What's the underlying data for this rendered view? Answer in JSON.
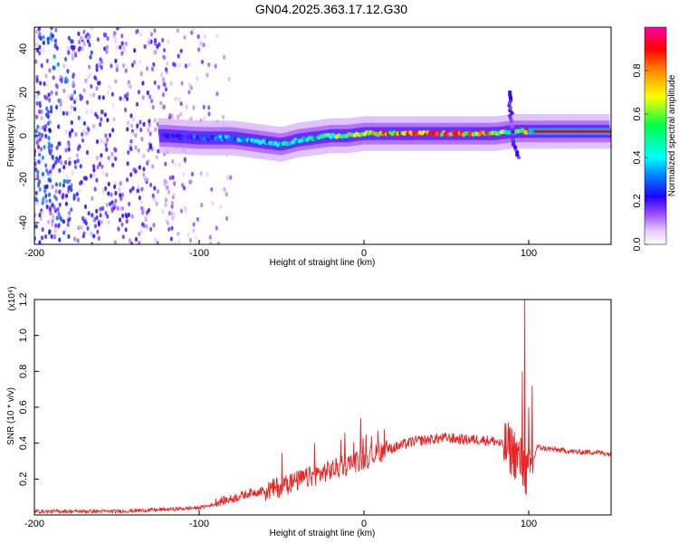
{
  "title": "GN04.2025.363.17.12.G30",
  "chart_data": [
    {
      "type": "heatmap",
      "xlabel": "Height of straight line (km)",
      "ylabel": "Frequency (Hz)",
      "xlim": [
        -200,
        150
      ],
      "ylim": [
        -50,
        50
      ],
      "x_ticks": [
        -200,
        -100,
        0,
        100
      ],
      "x_tick_labels": [
        "-200",
        "-100",
        "0",
        "100"
      ],
      "y_ticks": [
        -40,
        -20,
        0,
        20,
        40
      ],
      "y_tick_labels": [
        "-40",
        "-20",
        "0",
        "20",
        "40"
      ],
      "colorbar": {
        "label": "Normalized spectral amplitude",
        "range": [
          0.0,
          1.0
        ],
        "ticks": [
          0.0,
          0.2,
          0.4,
          0.6,
          0.8
        ],
        "tick_labels": [
          "0.0",
          "0.2",
          "0.4",
          "0.6",
          "0.8"
        ]
      },
      "ridge": {
        "x": [
          -120,
          -100,
          -80,
          -60,
          -50,
          -40,
          -30,
          -20,
          -10,
          0,
          20,
          40,
          60,
          80,
          90,
          100,
          150
        ],
        "freq": [
          0,
          -1,
          -1,
          -3,
          -4,
          -2,
          -1,
          0,
          0,
          1,
          1,
          1,
          1,
          1,
          2,
          2,
          2
        ],
        "amplitude": [
          0.25,
          0.35,
          0.4,
          0.45,
          0.5,
          0.45,
          0.55,
          0.6,
          0.75,
          0.9,
          0.9,
          0.95,
          0.95,
          0.9,
          0.6,
          0.95,
          1.0
        ]
      },
      "noise_region_x": [
        -200,
        -90
      ],
      "spike": {
        "x": 90,
        "freq_range": [
          -10,
          20
        ]
      }
    },
    {
      "type": "line",
      "xlabel": "Height of straight line (km)",
      "ylabel": "SNR (10 * v/v)",
      "y_multiplier": "(x10⁴)",
      "color": "#ee2222",
      "xlim": [
        -200,
        150
      ],
      "ylim": [
        0,
        1.2
      ],
      "x_ticks": [
        -200,
        -100,
        0,
        100
      ],
      "x_tick_labels": [
        "-200",
        "-100",
        "0",
        "100"
      ],
      "y_ticks": [
        0.2,
        0.4,
        0.6,
        0.8,
        1.0,
        1.2
      ],
      "y_tick_labels": [
        "0.2",
        "0.4",
        "0.6",
        "0.8",
        "1.0",
        "1.2"
      ],
      "envelope": {
        "x": [
          -200,
          -150,
          -120,
          -100,
          -90,
          -80,
          -70,
          -60,
          -50,
          -40,
          -30,
          -20,
          -10,
          0,
          10,
          20,
          30,
          40,
          50,
          60,
          70,
          80,
          90,
          95,
          100,
          105,
          110,
          120,
          130,
          140,
          150
        ],
        "y": [
          0.02,
          0.02,
          0.03,
          0.04,
          0.06,
          0.08,
          0.11,
          0.13,
          0.16,
          0.19,
          0.22,
          0.25,
          0.28,
          0.31,
          0.35,
          0.38,
          0.41,
          0.42,
          0.43,
          0.42,
          0.42,
          0.41,
          0.36,
          0.3,
          0.2,
          0.38,
          0.37,
          0.36,
          0.35,
          0.35,
          0.34
        ]
      },
      "peaks": [
        {
          "x": 97.5,
          "y": 1.2
        },
        {
          "x": 96,
          "y": 0.8
        },
        {
          "x": 100,
          "y": 0.6
        },
        {
          "x": 102,
          "y": 0.72
        },
        {
          "x": -2,
          "y": 0.54
        },
        {
          "x": -30,
          "y": 0.4
        }
      ]
    }
  ]
}
